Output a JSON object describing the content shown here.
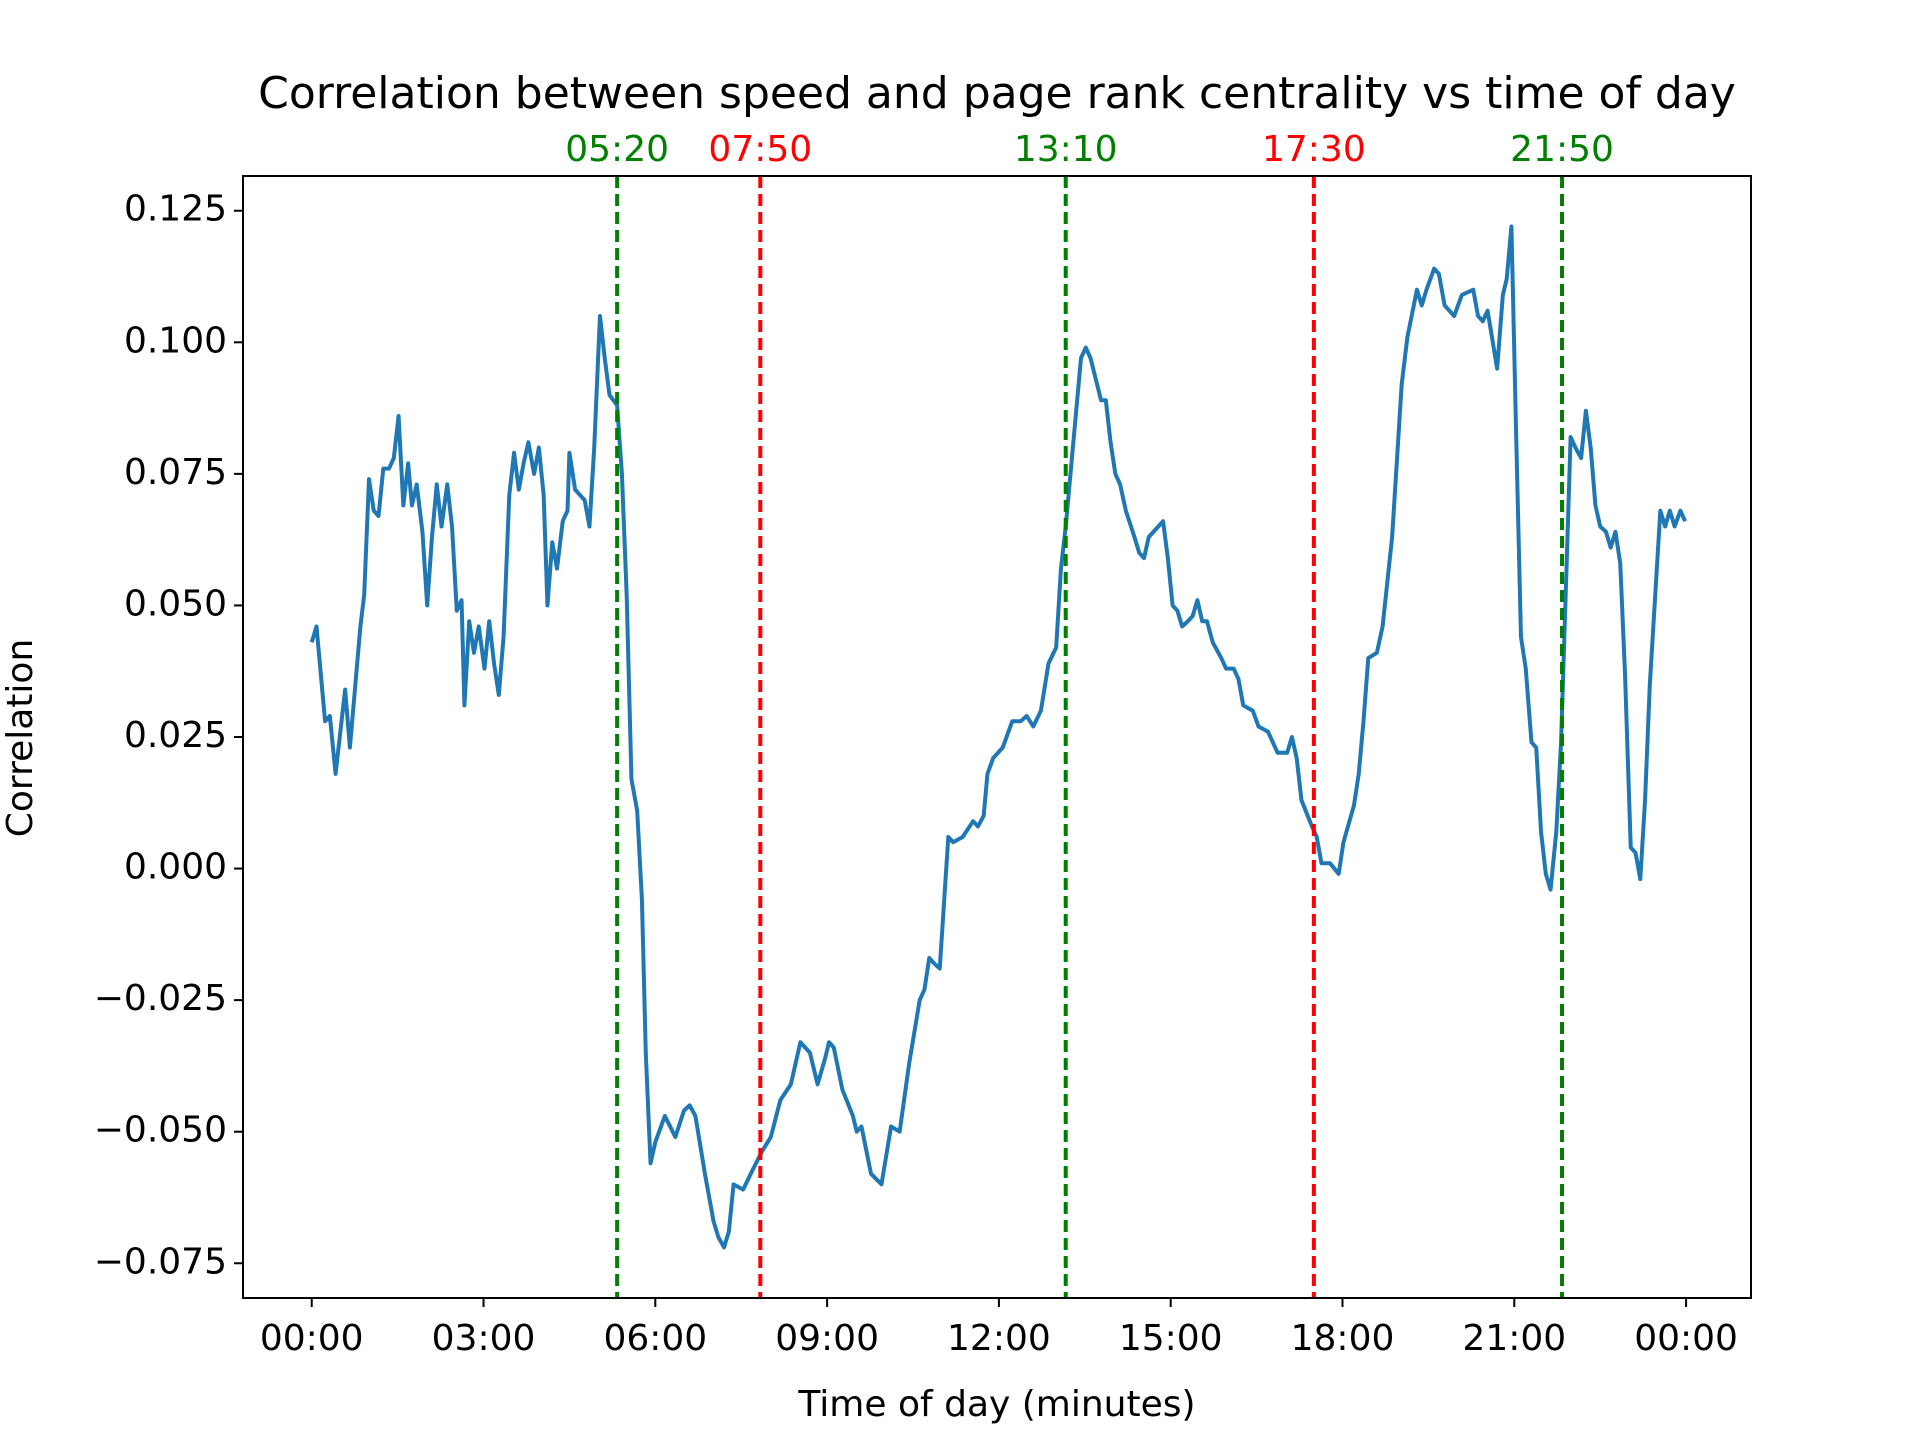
{
  "chart_data": {
    "type": "line",
    "title": "Correlation between speed and page rank centrality vs time of day",
    "x_label": "Time of day (minutes)",
    "y_label": "Correlation",
    "color": "#1f77b4",
    "x": [
      0,
      5,
      14,
      19,
      25,
      35,
      40,
      51,
      55,
      60,
      65,
      70,
      75,
      81,
      86,
      91,
      96,
      101,
      105,
      110,
      116,
      121,
      126,
      131,
      136,
      142,
      147,
      152,
      157,
      160,
      165,
      170,
      175,
      181,
      186,
      191,
      196,
      201,
      207,
      212,
      217,
      222,
      227,
      233,
      238,
      243,
      247,
      252,
      257,
      263,
      268,
      270,
      276,
      281,
      286,
      291,
      296,
      302,
      307,
      312,
      320,
      325,
      330,
      335,
      341,
      346,
      350,
      355,
      360,
      370,
      381,
      390,
      396,
      402,
      412,
      421,
      426,
      432,
      437,
      442,
      452,
      460,
      471,
      481,
      491,
      502,
      512,
      522,
      530,
      538,
      542,
      547,
      556,
      567,
      571,
      576,
      586,
      597,
      607,
      616,
      626,
      637,
      642,
      647,
      652,
      658,
      667,
      672,
      682,
      693,
      698,
      704,
      708,
      714,
      724,
      734,
      743,
      749,
      756,
      764,
      772,
      780,
      785,
      790,
      795,
      801,
      806,
      811,
      816,
      827,
      832,
      837,
      842,
      847,
      853,
      862,
      867,
      872,
      877,
      882,
      892,
      897,
      902,
      907,
      912,
      918,
      923,
      928,
      933,
      938,
      944,
      953,
      958,
      966,
      971,
      976,
      986,
      992,
      1002,
      1012,
      1022,
      1027,
      1032,
      1037,
      1048,
      1053,
      1058,
      1067,
      1076,
      1081,
      1092,
      1097,
      1102,
      1107,
      1116,
      1122,
      1132,
      1142,
      1148,
      1158,
      1163,
      1168,
      1176,
      1181,
      1187,
      1197,
      1205,
      1217,
      1222,
      1227,
      1232,
      1242,
      1248,
      1252,
      1257,
      1262,
      1267,
      1272,
      1278,
      1283,
      1288,
      1293,
      1298,
      1304,
      1309,
      1314,
      1319,
      1324,
      1330,
      1335,
      1340,
      1345,
      1350,
      1356,
      1361,
      1366,
      1371,
      1376,
      1382,
      1387,
      1392,
      1397,
      1402,
      1408,
      1413,
      1418,
      1423,
      1428,
      1434,
      1439
    ],
    "values": [
      0.043,
      0.046,
      0.028,
      0.029,
      0.018,
      0.034,
      0.023,
      0.046,
      0.052,
      0.074,
      0.068,
      0.067,
      0.076,
      0.076,
      0.078,
      0.086,
      0.069,
      0.077,
      0.069,
      0.073,
      0.064,
      0.05,
      0.063,
      0.073,
      0.065,
      0.073,
      0.065,
      0.049,
      0.051,
      0.031,
      0.047,
      0.041,
      0.046,
      0.038,
      0.047,
      0.039,
      0.033,
      0.044,
      0.071,
      0.079,
      0.072,
      0.077,
      0.081,
      0.075,
      0.08,
      0.071,
      0.05,
      0.062,
      0.057,
      0.066,
      0.068,
      0.079,
      0.072,
      0.071,
      0.07,
      0.065,
      0.08,
      0.105,
      0.097,
      0.09,
      0.088,
      0.075,
      0.052,
      0.017,
      0.011,
      -0.006,
      -0.035,
      -0.056,
      -0.052,
      -0.047,
      -0.051,
      -0.046,
      -0.045,
      -0.047,
      -0.058,
      -0.067,
      -0.07,
      -0.072,
      -0.069,
      -0.06,
      -0.061,
      -0.058,
      -0.054,
      -0.051,
      -0.044,
      -0.041,
      -0.033,
      -0.035,
      -0.041,
      -0.036,
      -0.033,
      -0.034,
      -0.042,
      -0.047,
      -0.05,
      -0.049,
      -0.058,
      -0.06,
      -0.049,
      -0.05,
      -0.037,
      -0.025,
      -0.023,
      -0.017,
      -0.018,
      -0.019,
      0.006,
      0.005,
      0.006,
      0.009,
      0.008,
      0.01,
      0.018,
      0.021,
      0.023,
      0.028,
      0.028,
      0.029,
      0.027,
      0.03,
      0.039,
      0.042,
      0.057,
      0.065,
      0.075,
      0.087,
      0.097,
      0.099,
      0.097,
      0.089,
      0.089,
      0.081,
      0.075,
      0.073,
      0.068,
      0.063,
      0.06,
      0.059,
      0.063,
      0.064,
      0.066,
      0.059,
      0.05,
      0.049,
      0.046,
      0.047,
      0.048,
      0.051,
      0.047,
      0.047,
      0.043,
      0.04,
      0.038,
      0.038,
      0.036,
      0.031,
      0.03,
      0.027,
      0.026,
      0.022,
      0.022,
      0.025,
      0.021,
      0.013,
      0.008,
      0.006,
      0.001,
      0.001,
      -0.001,
      0.005,
      0.012,
      0.018,
      0.028,
      0.04,
      0.041,
      0.046,
      0.063,
      0.092,
      0.101,
      0.11,
      0.107,
      0.11,
      0.114,
      0.113,
      0.107,
      0.105,
      0.109,
      0.11,
      0.105,
      0.104,
      0.106,
      0.095,
      0.109,
      0.112,
      0.122,
      0.082,
      0.044,
      0.038,
      0.024,
      0.023,
      0.007,
      -0.001,
      -0.004,
      0.007,
      0.024,
      0.053,
      0.082,
      0.08,
      0.078,
      0.087,
      0.08,
      0.069,
      0.065,
      0.064,
      0.061,
      0.064,
      0.058,
      0.037,
      0.004,
      0.003,
      -0.002,
      0.013,
      0.035,
      0.053,
      0.068,
      0.065,
      0.068,
      0.065,
      0.068,
      0.066
    ],
    "xlim": [
      -72,
      1508
    ],
    "ylim": [
      -0.0816,
      0.1316
    ],
    "xticks": [
      {
        "value": 0,
        "label": "00:00"
      },
      {
        "value": 180,
        "label": "03:00"
      },
      {
        "value": 360,
        "label": "06:00"
      },
      {
        "value": 540,
        "label": "09:00"
      },
      {
        "value": 720,
        "label": "12:00"
      },
      {
        "value": 900,
        "label": "15:00"
      },
      {
        "value": 1080,
        "label": "18:00"
      },
      {
        "value": 1260,
        "label": "21:00"
      },
      {
        "value": 1440,
        "label": "00:00"
      }
    ],
    "yticks": [
      {
        "value": -0.075,
        "label": "−0.075"
      },
      {
        "value": -0.05,
        "label": "−0.050"
      },
      {
        "value": -0.025,
        "label": "−0.025"
      },
      {
        "value": 0,
        "label": "0.000"
      },
      0.025,
      {
        "value": 0.05,
        "label": "0.050"
      },
      0.075,
      {
        "value": 0.1,
        "label": "0.100"
      },
      0.125
    ],
    "vlines": [
      {
        "x": 320,
        "label": "05:20",
        "color": "#008000"
      },
      {
        "x": 470,
        "label": "07:50",
        "color": "#ff0000"
      },
      {
        "x": 790,
        "label": "13:10",
        "color": "#008000"
      },
      {
        "x": 1050,
        "label": "17:30",
        "color": "#ff0000"
      },
      {
        "x": 1310,
        "label": "21:50",
        "color": "#008000"
      }
    ]
  }
}
